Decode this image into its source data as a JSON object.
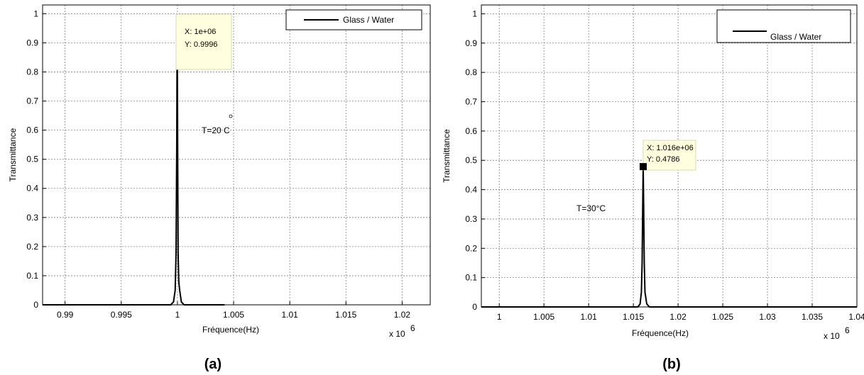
{
  "chart_data": [
    {
      "type": "line",
      "caption": "(a)",
      "xlabel": "Fréquence(Hz)",
      "ylabel": "Transmittance",
      "x_multiplier_label": "x 10",
      "x_multiplier_exp": "6",
      "xlim": [
        0.988,
        1.0225
      ],
      "ylim": [
        0,
        1.03
      ],
      "x_ticks": [
        0.99,
        0.995,
        1,
        1.005,
        1.01,
        1.015,
        1.02
      ],
      "x_tick_labels": [
        "0.99",
        "0.995",
        "1",
        "1.005",
        "1.01",
        "1.015",
        "1.02"
      ],
      "y_ticks": [
        0,
        0.1,
        0.2,
        0.3,
        0.4,
        0.5,
        0.6,
        0.7,
        0.8,
        0.9,
        1
      ],
      "y_tick_labels": [
        "0",
        "0.1",
        "0.2",
        "0.3",
        "0.4",
        "0.5",
        "0.6",
        "0.7",
        "0.8",
        "0.9",
        "1"
      ],
      "grid": true,
      "legend": {
        "placement": "top-right",
        "entries": [
          "Glass / Water"
        ]
      },
      "series": [
        {
          "name": "Glass / Water",
          "x": [
            0.988,
            0.9994,
            0.99965,
            0.9998,
            0.99988,
            0.99994,
            0.99998,
            1.00002,
            1.00006,
            1.00012,
            1.0002,
            1.00035,
            1.0006,
            1.0042
          ],
          "y": [
            0,
            0,
            0.01,
            0.05,
            0.18,
            0.55,
            0.9996,
            0.55,
            0.18,
            0.08,
            0.05,
            0.01,
            0,
            0
          ]
        }
      ],
      "datatip": {
        "x": 1.0,
        "y": 0.9996,
        "lines": [
          "X: 1e+06",
          "Y: 0.9996"
        ]
      },
      "annotation": {
        "text": "T=20 C",
        "x": 1.004,
        "y": 0.62
      }
    },
    {
      "type": "line",
      "caption": "(b)",
      "xlabel": "Fréquence(Hz)",
      "ylabel": "Transmittance",
      "x_multiplier_label": "x 10",
      "x_multiplier_exp": "6",
      "xlim": [
        0.998,
        1.04
      ],
      "ylim": [
        0,
        1.03
      ],
      "x_ticks": [
        1,
        1.005,
        1.01,
        1.015,
        1.02,
        1.025,
        1.03,
        1.035,
        1.04
      ],
      "x_tick_labels": [
        "1",
        "1.005",
        "1.01",
        "1.015",
        "1.02",
        "1.025",
        "1.03",
        "1.035",
        "1.04"
      ],
      "y_ticks": [
        0,
        0.1,
        0.2,
        0.3,
        0.4,
        0.5,
        0.6,
        0.7,
        0.8,
        0.9,
        1
      ],
      "y_tick_labels": [
        "0",
        "0.1",
        "0.2",
        "0.3",
        "0.4",
        "0.5",
        "0.6",
        "0.7",
        "0.8",
        "0.9",
        "1"
      ],
      "grid": true,
      "legend": {
        "placement": "top-right",
        "entries": [
          "Glass / Water"
        ]
      },
      "series": [
        {
          "name": "Glass / Water",
          "x": [
            0.998,
            1.0155,
            1.01575,
            1.0159,
            1.01598,
            1.01605,
            1.0161,
            1.01615,
            1.01622,
            1.0163,
            1.0165,
            1.0168,
            1.04
          ],
          "y": [
            0,
            0,
            0.01,
            0.05,
            0.15,
            0.35,
            0.4786,
            0.35,
            0.15,
            0.05,
            0.01,
            0,
            0
          ]
        }
      ],
      "datatip": {
        "x": 1.0161,
        "y": 0.4786,
        "lines": [
          "X: 1.016e+06",
          "Y: 0.4786"
        ]
      },
      "annotation": {
        "text": "T=30°C",
        "x": 1.0123,
        "y": 0.38
      }
    }
  ]
}
